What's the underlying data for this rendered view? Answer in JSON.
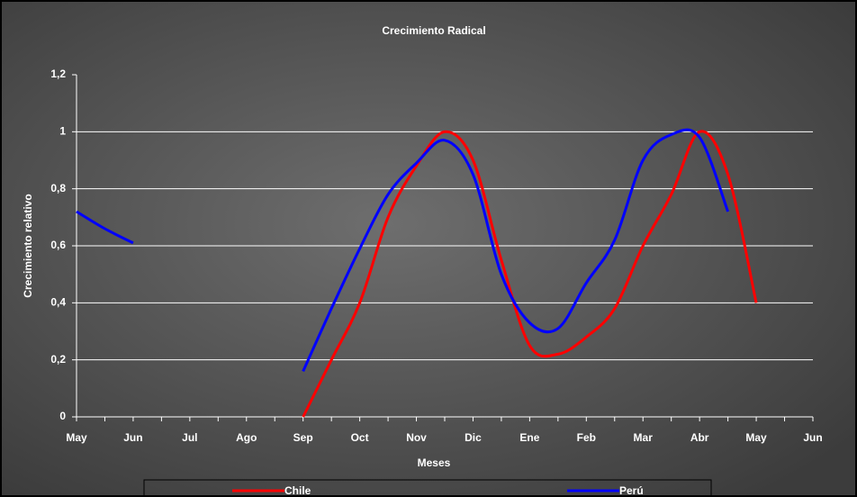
{
  "chart_data": {
    "type": "line",
    "title": "Crecimiento Radical",
    "x_label": "Meses",
    "y_label": "Crecimiento relativo",
    "categories": [
      "May",
      null,
      "Jun",
      null,
      "Jul",
      null,
      "Ago",
      null,
      "Sep",
      null,
      "Oct",
      null,
      "Nov",
      null,
      "Dic",
      null,
      "Ene",
      null,
      "Feb",
      null,
      "Mar",
      null,
      "Abr",
      null,
      "May",
      null,
      "Jun"
    ],
    "series": [
      {
        "name": "Chile",
        "color": "#ff0000",
        "values": [
          null,
          null,
          null,
          null,
          null,
          null,
          null,
          null,
          0,
          0.2,
          0.4,
          0.7,
          0.88,
          1.0,
          0.9,
          0.55,
          0.25,
          0.22,
          0.28,
          0.38,
          0.6,
          0.78,
          1.0,
          0.85,
          0.4,
          null,
          null
        ]
      },
      {
        "name": "Perú",
        "color": "#0000ff",
        "values": [
          0.72,
          0.66,
          0.61,
          null,
          null,
          null,
          null,
          null,
          0.16,
          0.38,
          0.59,
          0.78,
          0.89,
          0.97,
          0.85,
          0.5,
          0.33,
          0.31,
          0.47,
          0.62,
          0.9,
          0.99,
          0.98,
          0.72,
          null,
          null,
          null
        ]
      }
    ],
    "ylim": [
      0,
      1.2
    ],
    "yticks": [
      0,
      {
        "value": 0.2,
        "label": "0,2"
      },
      {
        "value": 0.4,
        "label": "0,4"
      },
      {
        "value": 0.6,
        "label": "0,6"
      },
      {
        "value": 0.8,
        "label": "0,8"
      },
      1,
      {
        "value": 1.2,
        "label": "1,2"
      }
    ],
    "grid": true,
    "legend": "bottom"
  }
}
